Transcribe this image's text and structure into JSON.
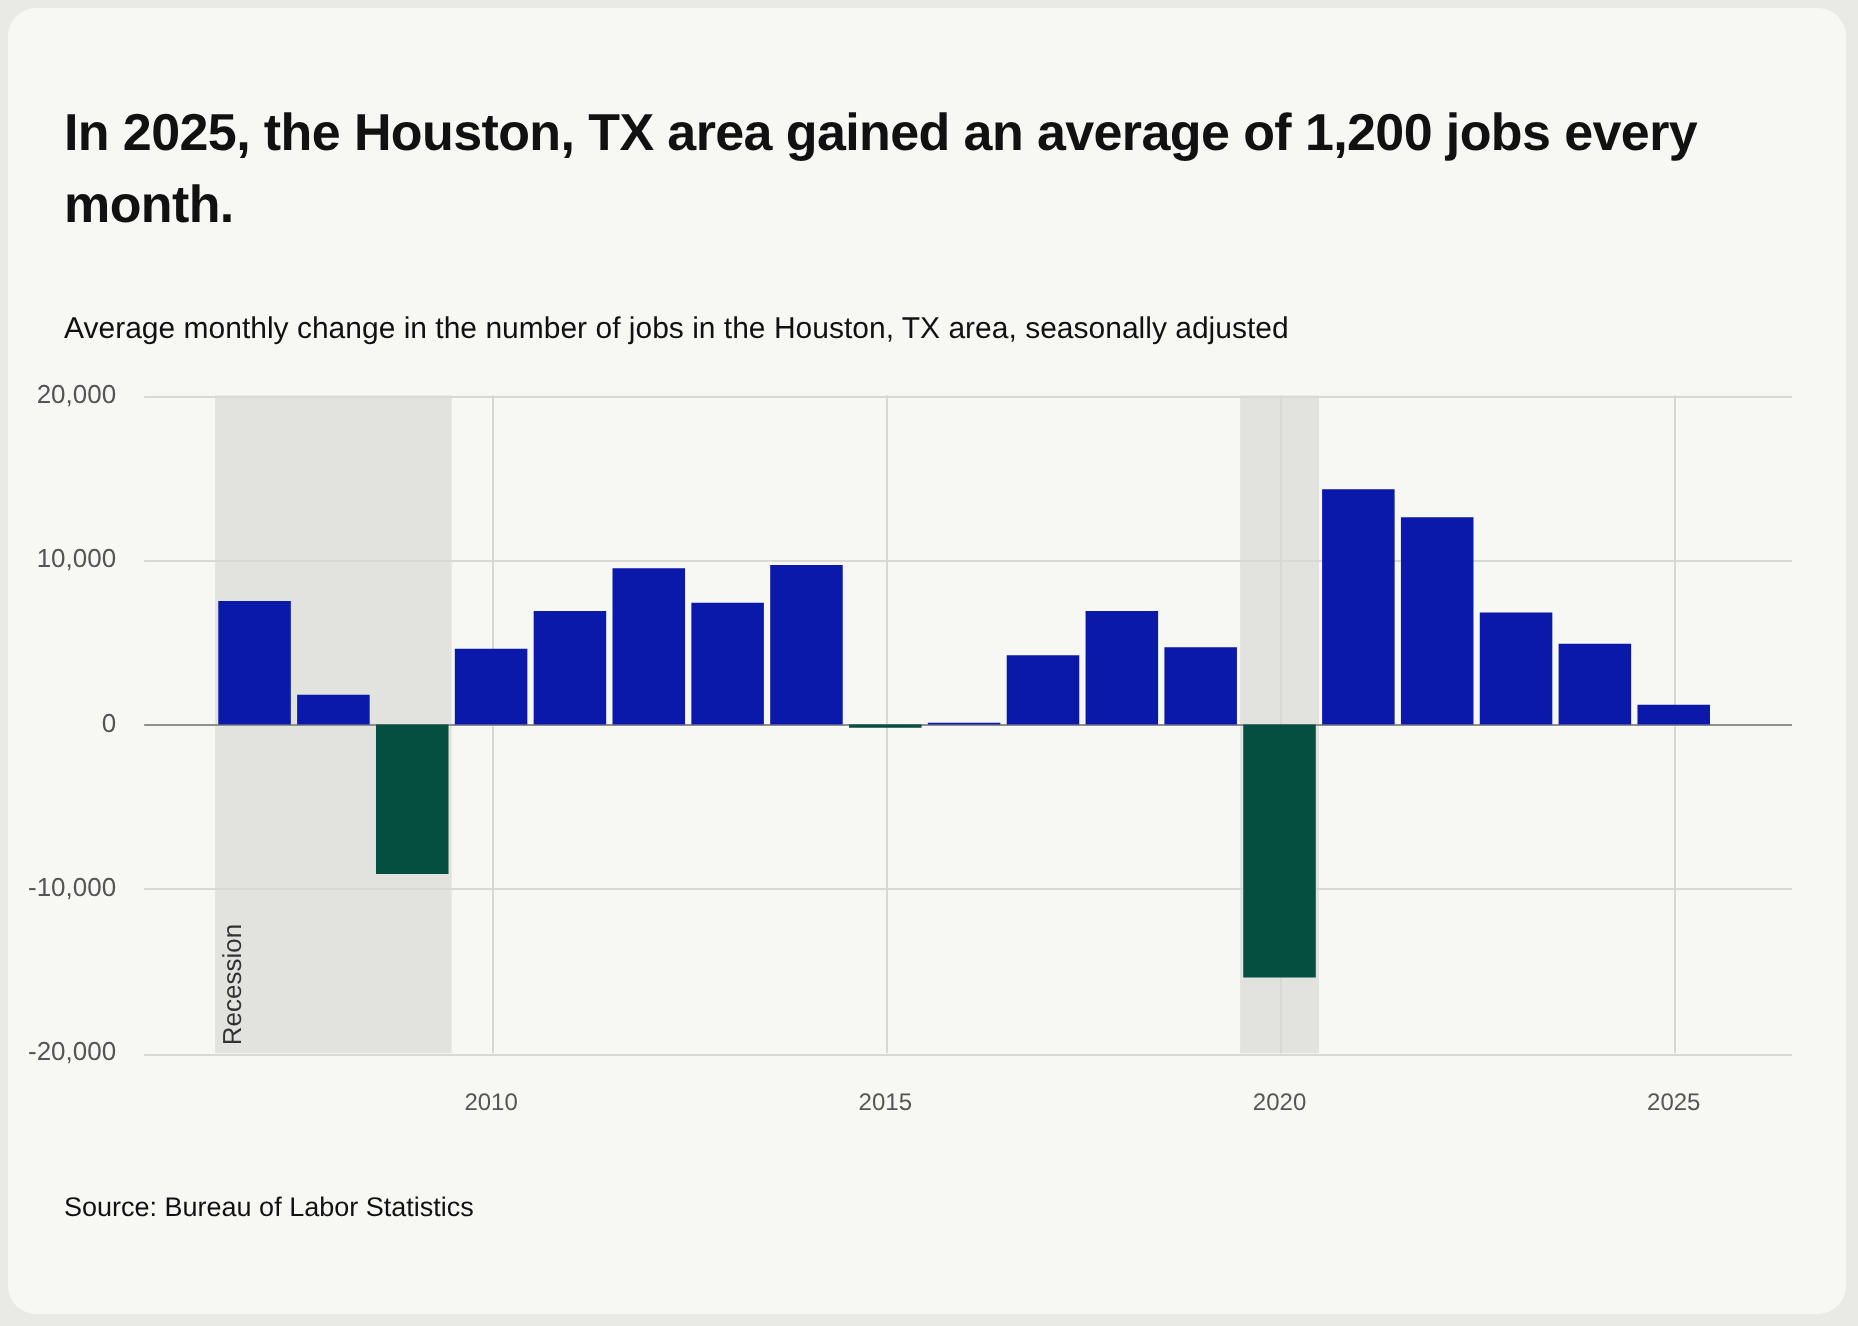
{
  "chart_data": {
    "type": "bar",
    "title": "In 2025, the Houston, TX area gained an average of 1,200 jobs every month.",
    "subtitle": "Average monthly change in the number of jobs in the Houston, TX area, seasonally adjusted",
    "x": [
      2007,
      2008,
      2009,
      2010,
      2011,
      2012,
      2013,
      2014,
      2015,
      2016,
      2017,
      2018,
      2019,
      2020,
      2021,
      2022,
      2023,
      2024,
      2025
    ],
    "values": [
      7500,
      1800,
      -9100,
      4600,
      6900,
      9500,
      7400,
      9700,
      -200,
      100,
      4200,
      6900,
      4700,
      -15400,
      14300,
      12600,
      6800,
      4900,
      1200
    ],
    "colors": [
      "#0b19ab",
      "#0b19ab",
      "#054f40",
      "#0b19ab",
      "#0b19ab",
      "#0b19ab",
      "#0b19ab",
      "#0b19ab",
      "#054f40",
      "#0b19ab",
      "#0b19ab",
      "#0b19ab",
      "#0b19ab",
      "#054f40",
      "#0b19ab",
      "#0b19ab",
      "#0b19ab",
      "#0b19ab",
      "#0b19ab"
    ],
    "xlim": [
      2005.6,
      2026.5
    ],
    "xticks": [
      2010,
      2015,
      2020,
      2025
    ],
    "ylim": [
      -20000,
      20000
    ],
    "yticks": [
      {
        "value": -20000,
        "label": "-20,000"
      },
      {
        "value": -10000,
        "label": "-10,000"
      },
      {
        "value": 0,
        "label": "0"
      },
      {
        "value": 10000,
        "label": "10,000"
      },
      {
        "value": 20000,
        "label": "20,000"
      }
    ],
    "bands": [
      {
        "axis": "x",
        "from": 2006.5,
        "to": 2009.5,
        "label": "Recession",
        "color": "#e2e2de"
      },
      {
        "axis": "x",
        "from": 2019.5,
        "to": 2020.5,
        "color": "#e2e2de"
      }
    ],
    "grid": true,
    "annotations": [
      "Source: Bureau of Labor Statistics"
    ]
  }
}
